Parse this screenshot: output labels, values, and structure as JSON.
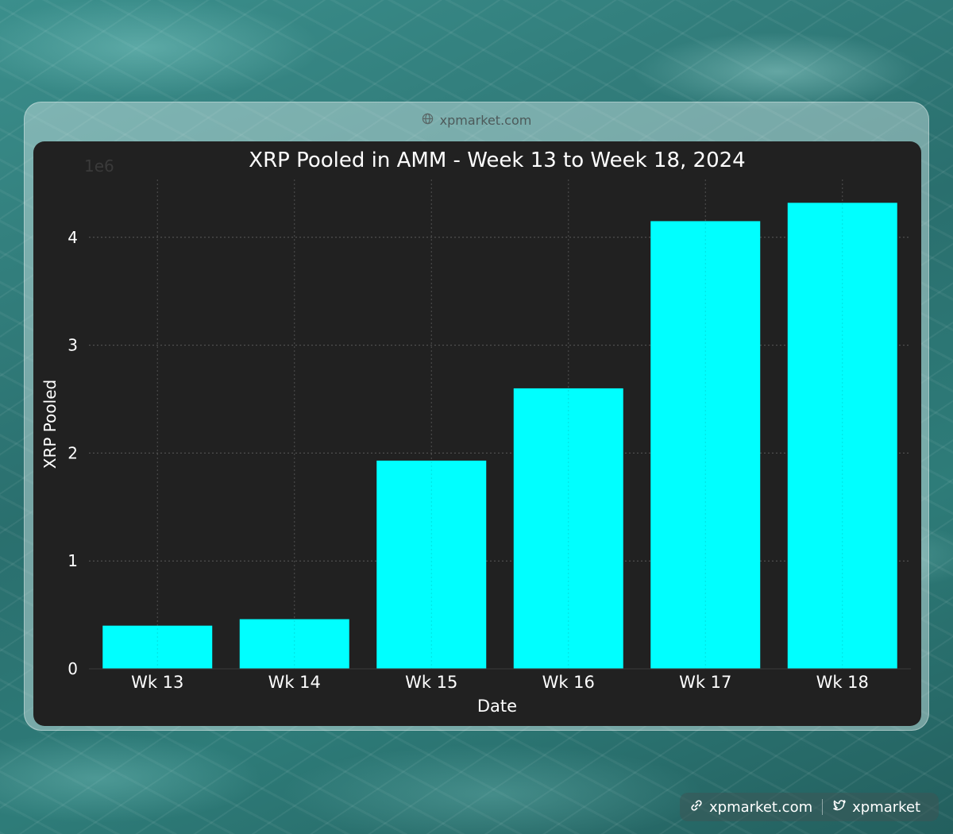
{
  "browser": {
    "url_text": "xpmarket.com"
  },
  "footer": {
    "site": "xpmarket.com",
    "handle": "xpmarket"
  },
  "colors": {
    "bar": "#00ffff",
    "panel": "#212121",
    "text": "#ffffff"
  },
  "chart_data": {
    "type": "bar",
    "title": "XRP Pooled in AMM - Week 13 to Week 18, 2024",
    "xlabel": "Date",
    "ylabel": "XRP Pooled",
    "y_offset_text": "1e6",
    "categories": [
      "Wk 13",
      "Wk 14",
      "Wk 15",
      "Wk 16",
      "Wk 17",
      "Wk 18"
    ],
    "values": [
      400000,
      460000,
      1930000,
      2600000,
      4150000,
      4320000
    ],
    "yticks": [
      0,
      1,
      2,
      3,
      4
    ],
    "ytick_scale": 1000000,
    "ylim": [
      0,
      4536000
    ],
    "grid": true
  }
}
